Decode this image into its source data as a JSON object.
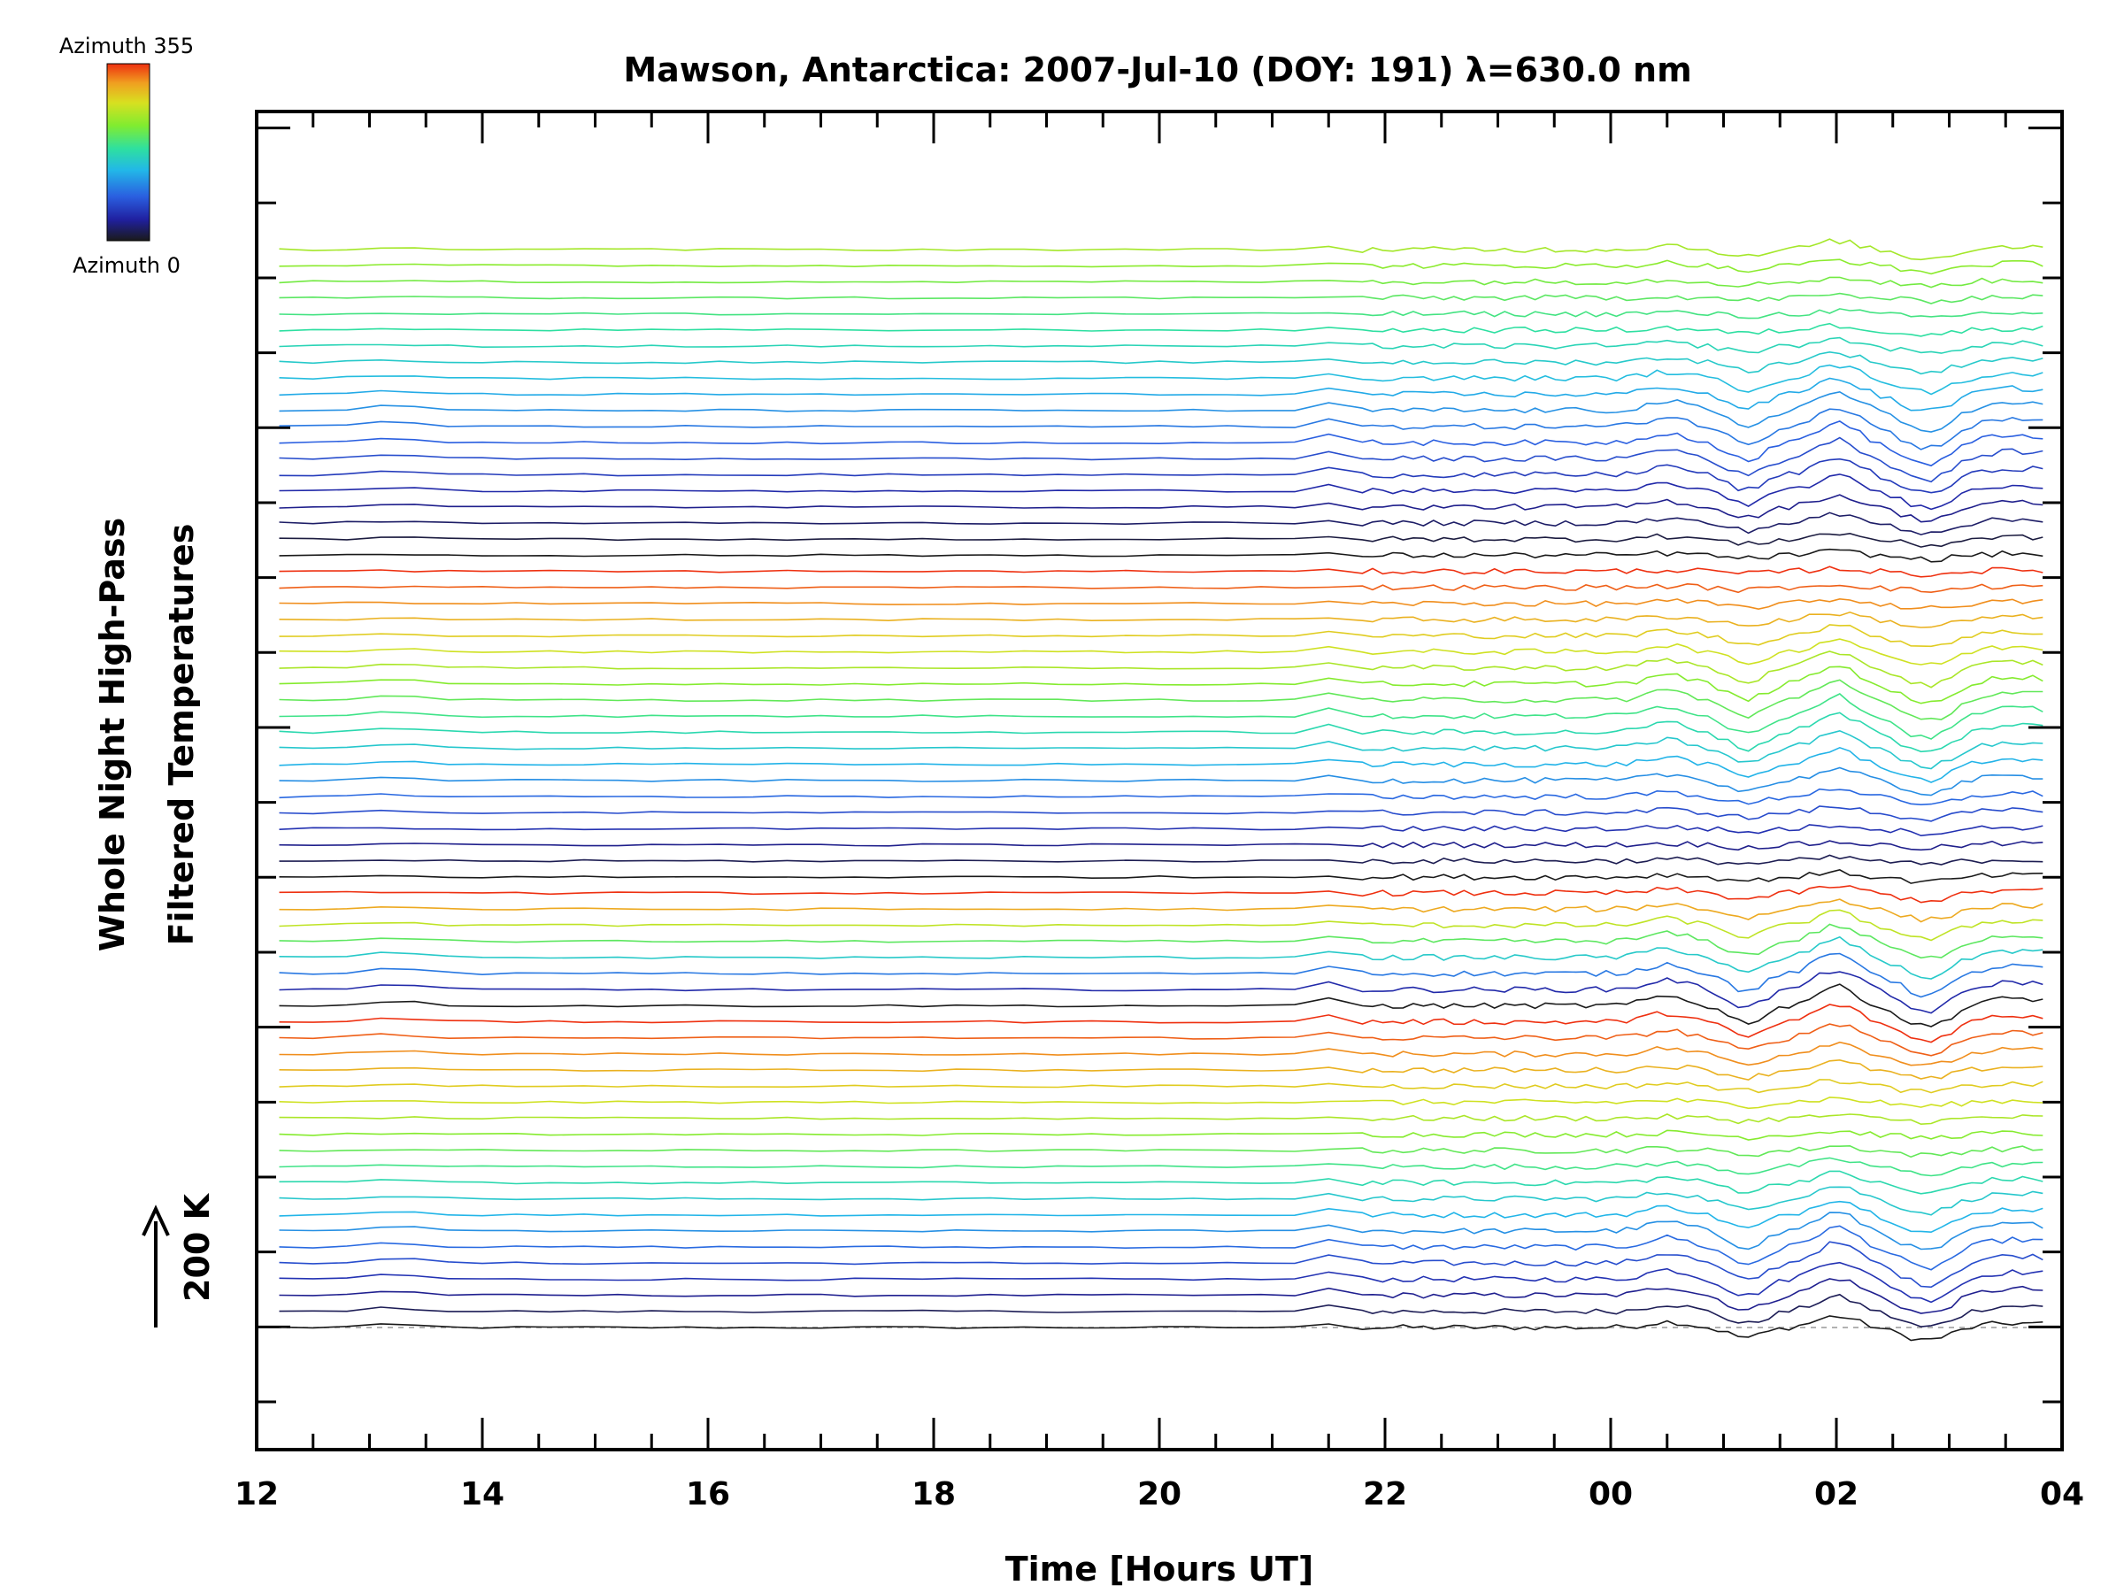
{
  "chart_data": {
    "type": "line",
    "title": "Mawson, Antarctica: 2007-Jul-10 (DOY: 191) λ=630.0 nm",
    "xlabel": "Time [Hours UT]",
    "ylabel_line1": "Whole Night High-Pass",
    "ylabel_line2": "Filtered Temperatures",
    "scale_bar_label": "200 K",
    "scale_bar_kelvin": 200,
    "x_range_hours": [
      12,
      28
    ],
    "x_tick_labels": [
      "12",
      "14",
      "16",
      "18",
      "20",
      "22",
      "00",
      "02",
      "04"
    ],
    "x_tick_hours": [
      12,
      14,
      16,
      18,
      20,
      22,
      24,
      26,
      28
    ],
    "data_start_hour": 12.2,
    "data_end_hour": 27.9,
    "colorbar": {
      "max_label": "Azimuth 355",
      "min_label": "Azimuth 0",
      "colors": [
        "#1a1a1a",
        "#2020a0",
        "#2a5fe0",
        "#22b8e8",
        "#2ee0a0",
        "#80ec30",
        "#d8e020",
        "#f0a020",
        "#ee3010"
      ]
    },
    "series_count": 68,
    "series_azimuth_cycles": [
      {
        "count": 1,
        "azimuth_start": 0,
        "azimuth_end": 0
      },
      {
        "count": 19,
        "azimuth_start": 20,
        "azimuth_end": 355
      },
      {
        "count": 8,
        "azimuth_start": 0,
        "azimuth_end": 355
      },
      {
        "count": 20,
        "azimuth_start": 0,
        "azimuth_end": 355
      },
      {
        "count": 20,
        "azimuth_start": 0,
        "azimuth_end": 240
      }
    ]
  }
}
